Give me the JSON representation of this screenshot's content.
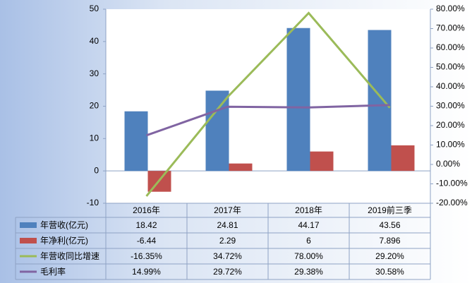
{
  "chart_data": {
    "type": "bar",
    "categories": [
      "2016年",
      "2017年",
      "2018年",
      "2019前三季"
    ],
    "series": [
      {
        "name": "年营收(亿元)",
        "type": "bar",
        "color": "#4f81bd",
        "values": [
          18.42,
          24.81,
          44.17,
          43.56
        ]
      },
      {
        "name": "年净利(亿元)",
        "type": "bar",
        "color": "#c0504d",
        "values": [
          -6.44,
          2.29,
          6,
          7.896
        ]
      },
      {
        "name": "年营收同比增速",
        "type": "line",
        "axis": "y2",
        "color": "#9bbb59",
        "values": [
          -16.35,
          34.72,
          78.0,
          29.2
        ],
        "value_labels": [
          "-16.35%",
          "34.72%",
          "78.00%",
          "29.20%"
        ]
      },
      {
        "name": "毛利率",
        "type": "line",
        "axis": "y2",
        "color": "#8064a2",
        "values": [
          14.99,
          29.72,
          29.38,
          30.58
        ],
        "value_labels": [
          "14.99%",
          "29.72%",
          "29.38%",
          "30.58%"
        ]
      }
    ],
    "ylim": [
      -10,
      50
    ],
    "yticks": [
      -10,
      0,
      10,
      20,
      30,
      40,
      50
    ],
    "y2lim": [
      -20,
      80
    ],
    "y2ticks": [
      {
        "value": -20,
        "label": "-20.00%"
      },
      {
        "value": -10,
        "label": "-10.00%"
      },
      {
        "value": 0,
        "label": "0.00%"
      },
      {
        "value": 10,
        "label": "10.00%"
      },
      {
        "value": 20,
        "label": "20.00%"
      },
      {
        "value": 30,
        "label": "30.00%"
      },
      {
        "value": 40,
        "label": "40.00%"
      },
      {
        "value": 50,
        "label": "50.00%"
      },
      {
        "value": 60,
        "label": "60.00%"
      },
      {
        "value": 70,
        "label": "70.00%"
      },
      {
        "value": 80,
        "label": "80.00%"
      }
    ],
    "grid": false
  }
}
